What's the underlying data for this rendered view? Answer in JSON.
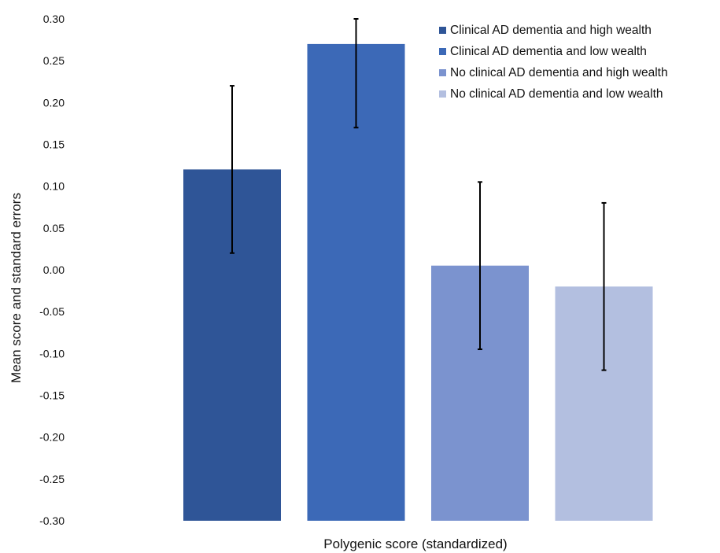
{
  "chart_data": {
    "type": "bar",
    "title": "",
    "xlabel": "Polygenic score (standardized)",
    "ylabel": "Mean score and standard errors",
    "ylim": [
      -0.3,
      0.3
    ],
    "yticks": [
      "0.30",
      "0.25",
      "0.20",
      "0.15",
      "0.10",
      "0.05",
      "0.00",
      "-0.05",
      "-0.10",
      "-0.15",
      "-0.20",
      "-0.25",
      "-0.30"
    ],
    "grid": false,
    "legend_position": "top-right",
    "series": [
      {
        "name": "Clinical AD dementia and high wealth",
        "value": 0.12,
        "error_low": 0.02,
        "error_high": 0.22,
        "color": "#2f5597"
      },
      {
        "name": "Clinical AD dementia and low wealth",
        "value": 0.27,
        "error_low": 0.17,
        "error_high": 0.3,
        "color": "#3c69b7"
      },
      {
        "name": "No clinical AD dementia and high wealth",
        "value": 0.005,
        "error_low": -0.095,
        "error_high": 0.105,
        "color": "#7b93cf"
      },
      {
        "name": "No clinical AD dementia and low wealth",
        "value": -0.02,
        "error_low": -0.12,
        "error_high": 0.08,
        "color": "#b3bfe0"
      }
    ]
  }
}
